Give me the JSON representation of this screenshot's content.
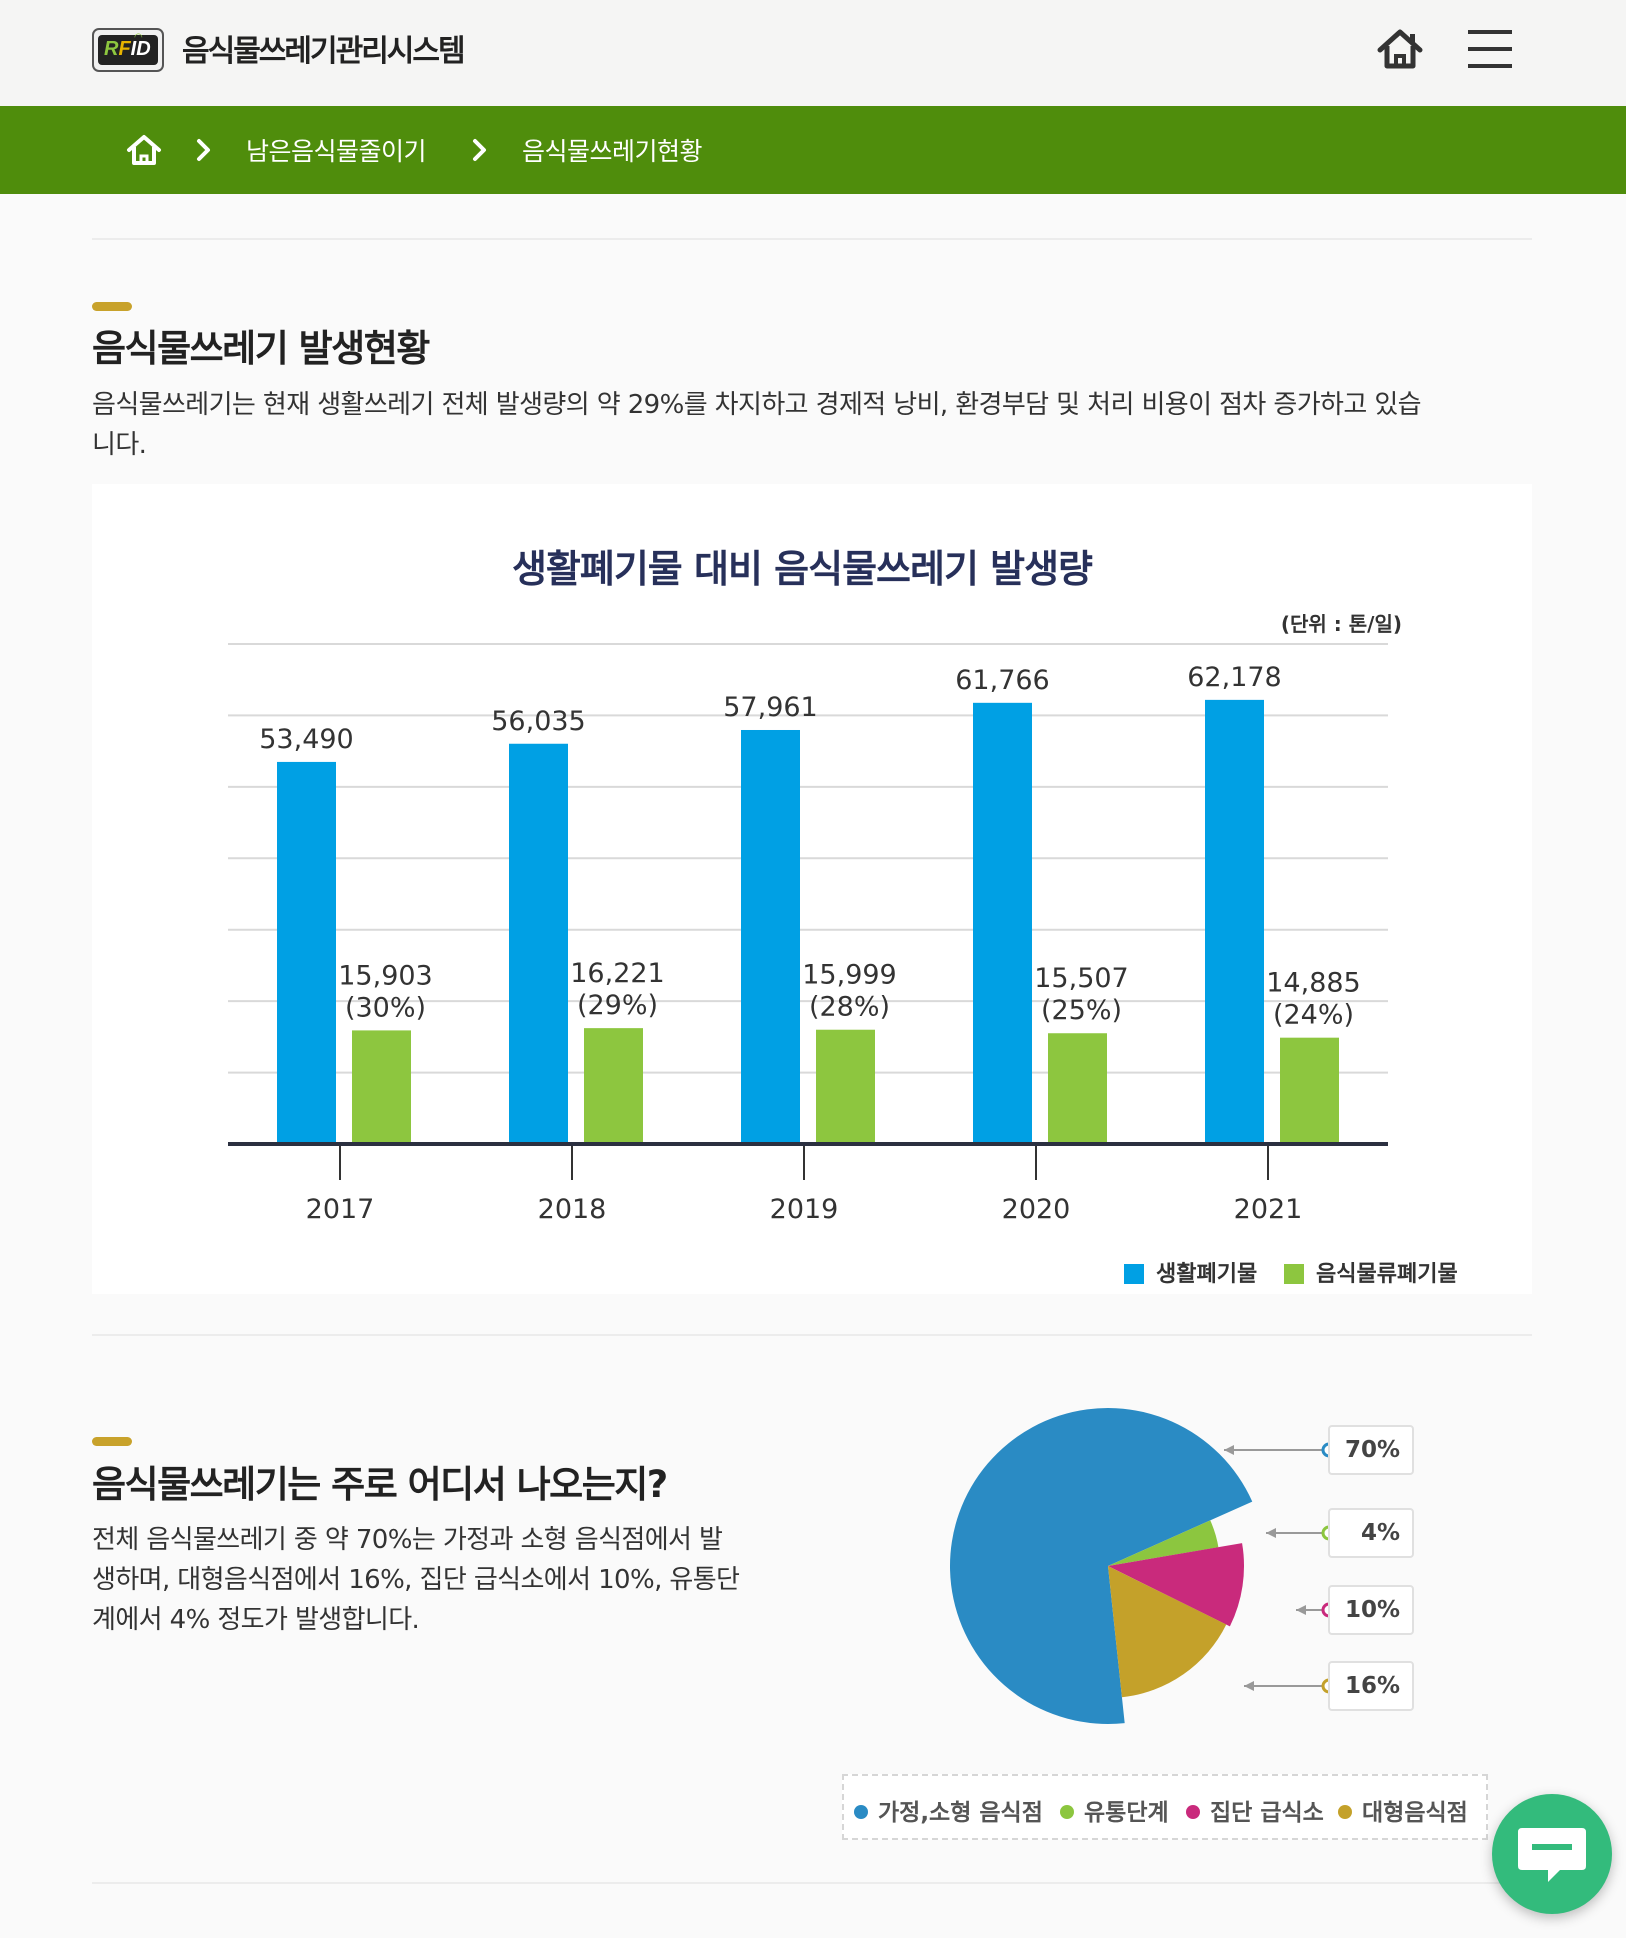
{
  "header": {
    "logo_text": "RFID",
    "title": "음식물쓰레기관리시스템",
    "home_icon": "home-icon",
    "menu_icon": "hamburger-menu-icon"
  },
  "breadcrumb": {
    "home_icon": "home-icon",
    "items": [
      "남은음식물줄이기",
      "음식물쓰레기현황"
    ]
  },
  "section1": {
    "title": "음식물쓰레기 발생현황",
    "desc_line1": "음식물쓰레기는 현재 생활쓰레기 전체 발생량의 약 29%를 차지하고 경제적 낭비, 환경부담 및 처리 비용이 점차 증가하고 있습",
    "desc_line2": "니다."
  },
  "chart_data": [
    {
      "type": "bar",
      "title": "생활폐기물 대비 음식물쓰레기 발생량",
      "unit": "(단위 : 톤/일)",
      "categories": [
        "2017",
        "2018",
        "2019",
        "2020",
        "2021"
      ],
      "series": [
        {
          "name": "생활폐기물",
          "color": "#00a0e4",
          "values": [
            53490,
            56035,
            57961,
            61766,
            62178
          ],
          "labels": [
            "53,490",
            "56,035",
            "57,961",
            "61,766",
            "62,178"
          ]
        },
        {
          "name": "음식물류폐기물",
          "color": "#8dc63f",
          "values": [
            15903,
            16221,
            15999,
            15507,
            14885
          ],
          "labels": [
            "15,903",
            "16,221",
            "15,999",
            "15,507",
            "14,885"
          ],
          "shares": [
            "(30%)",
            "(29%)",
            "(28%)",
            "(25%)",
            "(24%)"
          ]
        }
      ],
      "ylim": [
        0,
        70000
      ],
      "grid": true,
      "legend": "bottom-right"
    },
    {
      "type": "pie",
      "labels": [
        "가정,소형 음식점",
        "유통단계",
        "집단 급식소",
        "대형음식점"
      ],
      "values": [
        70,
        4,
        10,
        16
      ],
      "value_labels": [
        "70%",
        "4%",
        "10%",
        "16%"
      ],
      "colors": [
        "#2a8bc4",
        "#8cc63f",
        "#c92a7c",
        "#c4a12a"
      ],
      "legend": "bottom"
    }
  ],
  "section2": {
    "title": "음식물쓰레기는 주로 어디서 나오는지?",
    "desc_line1": "전체 음식물쓰레기 중 약 70%는 가정과 소형 음식점에서 발",
    "desc_line2": "생하며, 대형음식점에서 16%, 집단 급식소에서 10%, 유통단",
    "desc_line3": "계에서 4% 정도가 발생합니다."
  },
  "chat_icon": "chat-bubble-icon"
}
